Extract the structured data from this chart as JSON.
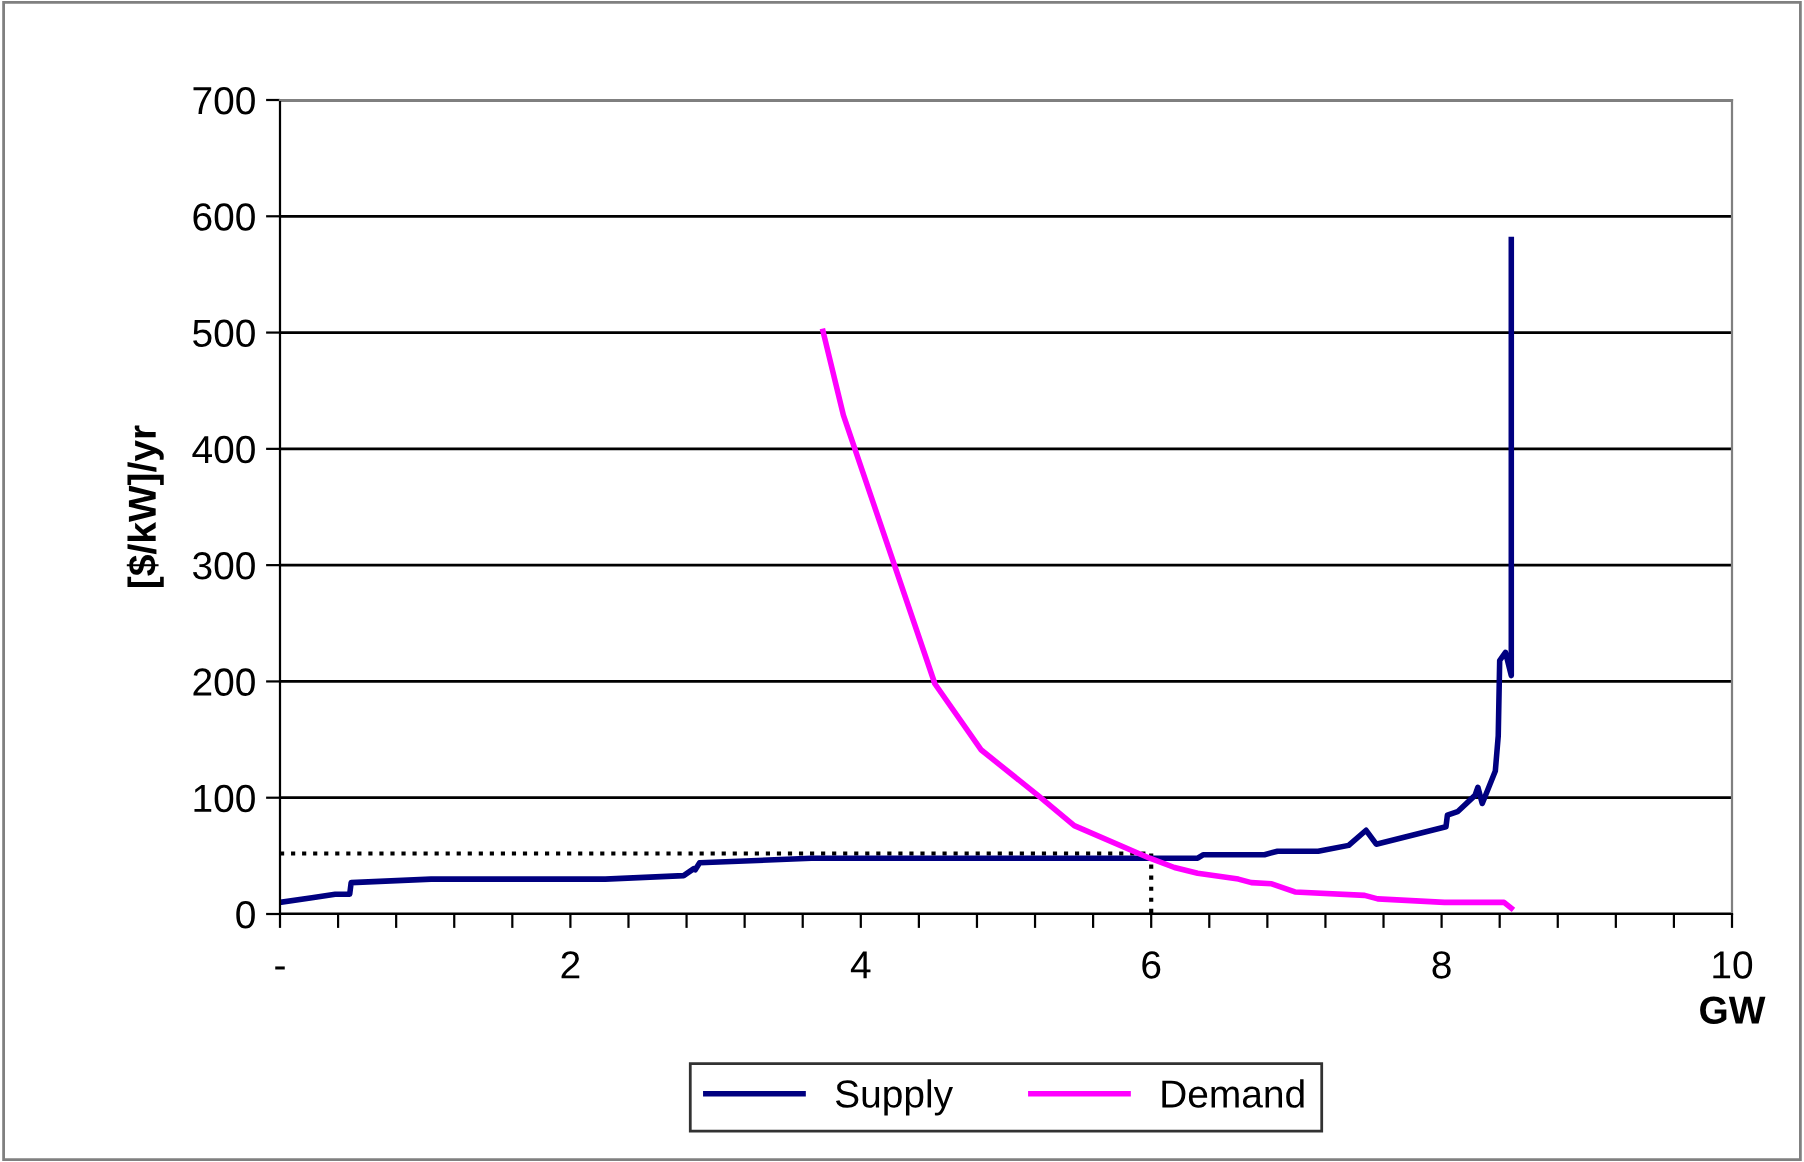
{
  "chart_data": {
    "type": "line",
    "xlabel": "GW",
    "ylabel": "[$/kW]/yr",
    "xlim": [
      0,
      10
    ],
    "ylim": [
      0,
      700
    ],
    "xticks": [
      {
        "value": 0,
        "label": "-"
      },
      {
        "value": 0.4,
        "label": null
      },
      {
        "value": 0.8,
        "label": null
      },
      {
        "value": 1.2,
        "label": null
      },
      {
        "value": 1.6,
        "label": null
      },
      2,
      {
        "value": 2.4,
        "label": null
      },
      {
        "value": 2.8,
        "label": null
      },
      {
        "value": 3.2,
        "label": null
      },
      {
        "value": 3.6,
        "label": null
      },
      4,
      {
        "value": 4.4,
        "label": null
      },
      {
        "value": 4.8,
        "label": null
      },
      {
        "value": 5.2,
        "label": null
      },
      {
        "value": 5.6,
        "label": null
      },
      6,
      {
        "value": 6.4,
        "label": null
      },
      {
        "value": 6.8,
        "label": null
      },
      {
        "value": 7.2,
        "label": null
      },
      {
        "value": 7.6,
        "label": null
      },
      8,
      {
        "value": 8.4,
        "label": null
      },
      {
        "value": 8.8,
        "label": null
      },
      {
        "value": 9.2,
        "label": null
      },
      {
        "value": 9.6,
        "label": null
      },
      10
    ],
    "yticks": [
      0,
      100,
      200,
      300,
      400,
      500,
      600,
      700
    ],
    "grid": "y",
    "legend": "bottom",
    "marker": "none",
    "line_style": "solid",
    "series": [
      {
        "color": "#000000",
        "line_style": "dotted",
        "x": [
          0,
          6
        ],
        "values": [
          52,
          52
        ]
      },
      {
        "color": "#000000",
        "line_style": "dotted",
        "x": [
          6,
          6
        ],
        "values": [
          52,
          0
        ]
      },
      {
        "name": "Supply",
        "color": "#000080",
        "x": [
          0,
          0.22,
          0.38,
          0.48,
          0.49,
          1.04,
          2.24,
          2.78,
          2.85,
          2.86,
          2.89,
          3.66,
          5.36,
          6.32,
          6.36,
          6.78,
          6.87,
          7.15,
          7.36,
          7.48,
          7.55,
          8.03,
          8.04,
          8.11,
          8.23,
          8.25,
          8.28,
          8.37,
          8.39,
          8.4,
          8.44,
          8.48,
          8.48
        ],
        "values": [
          10,
          14,
          17,
          17,
          27,
          30,
          30,
          33,
          39,
          38,
          44,
          48,
          48,
          48,
          51,
          51,
          54,
          54,
          59,
          72,
          60,
          75,
          85,
          88,
          102,
          109,
          95,
          123,
          153,
          218,
          225,
          205,
          580
        ]
      },
      {
        "name": "Demand",
        "color": "#ff00ff",
        "x": [
          3.74,
          3.88,
          4.51,
          4.83,
          5.22,
          5.47,
          5.99,
          6.16,
          6.32,
          6.6,
          6.69,
          6.83,
          6.99,
          7.47,
          7.56,
          8.02,
          8.43,
          8.48
        ],
        "values": [
          501,
          429,
          198,
          141,
          102,
          76,
          48,
          40,
          35,
          30,
          27,
          26,
          19,
          16,
          13,
          10,
          10,
          5
        ]
      }
    ]
  }
}
